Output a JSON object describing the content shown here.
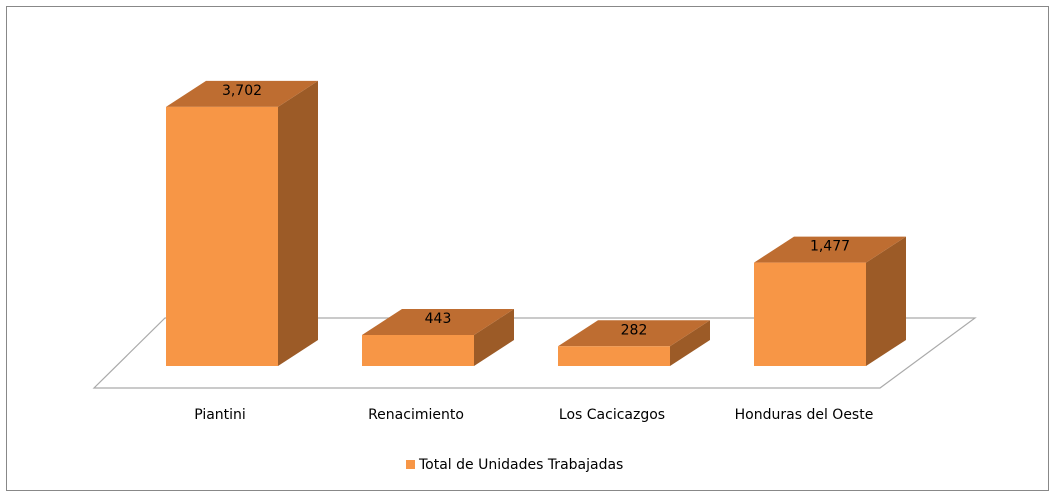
{
  "chart_data": {
    "type": "bar3d",
    "categories": [
      "Piantini",
      "Renacimiento",
      "Los Cacicazgos",
      "Honduras del Oeste"
    ],
    "series": [
      {
        "name": "Total de Unidades Trabajadas",
        "color": "#f79646",
        "values": [
          3702,
          443,
          282,
          1477
        ],
        "value_labels": [
          "3,702",
          "443",
          "282",
          "1,477"
        ]
      }
    ],
    "ylim": [
      0,
      4000
    ],
    "legend": "bottom"
  }
}
